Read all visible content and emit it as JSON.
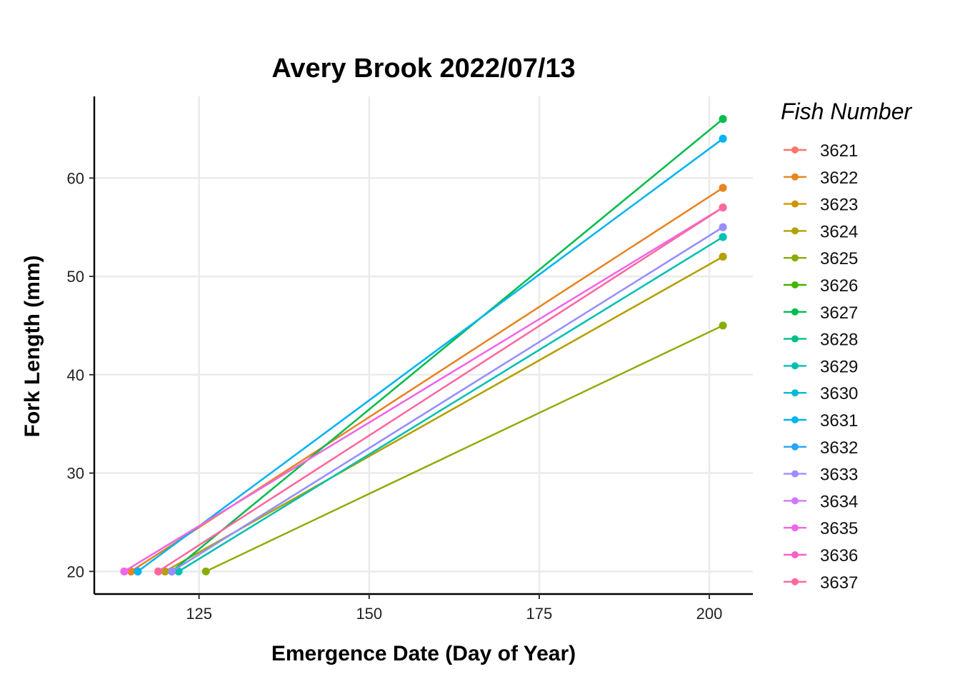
{
  "chart_data": {
    "type": "line",
    "title": "Avery Brook 2022/07/13",
    "xlabel": "Emergence Date (Day of Year)",
    "ylabel": "Fork Length (mm)",
    "xlim": [
      109.6,
      206.4
    ],
    "ylim": [
      17.7,
      68.3
    ],
    "xticks": [
      125,
      150,
      175,
      200
    ],
    "yticks": [
      20,
      30,
      40,
      50,
      60
    ],
    "grid": true,
    "legend": {
      "title": "Fish Number",
      "position": "right"
    },
    "series": [
      {
        "name": "3621",
        "color": "#F8766D",
        "points": [
          [
            115,
            20
          ],
          [
            202,
            59
          ]
        ]
      },
      {
        "name": "3622",
        "color": "#E7851E",
        "points": [
          [
            115,
            20
          ],
          [
            202,
            59
          ]
        ]
      },
      {
        "name": "3623",
        "color": "#D09400",
        "points": [
          [
            120,
            20
          ],
          [
            202,
            52
          ]
        ]
      },
      {
        "name": "3624",
        "color": "#B2A100",
        "points": [
          [
            120,
            20
          ],
          [
            202,
            52
          ]
        ]
      },
      {
        "name": "3625",
        "color": "#89AC00",
        "points": [
          [
            126,
            20
          ],
          [
            202,
            45
          ]
        ]
      },
      {
        "name": "3626",
        "color": "#45B500",
        "points": [
          [
            121,
            20
          ],
          [
            202,
            66
          ]
        ]
      },
      {
        "name": "3627",
        "color": "#00BC51",
        "points": [
          [
            121,
            20
          ],
          [
            202,
            66
          ]
        ]
      },
      {
        "name": "3628",
        "color": "#00C087",
        "points": [
          [
            122,
            20
          ],
          [
            202,
            54
          ]
        ]
      },
      {
        "name": "3629",
        "color": "#00C0B2",
        "points": [
          [
            122,
            20
          ],
          [
            202,
            54
          ]
        ]
      },
      {
        "name": "3630",
        "color": "#00BCD6",
        "points": [
          [
            116,
            20
          ],
          [
            202,
            64
          ]
        ]
      },
      {
        "name": "3631",
        "color": "#00B3F2",
        "points": [
          [
            116,
            20
          ],
          [
            202,
            64
          ]
        ]
      },
      {
        "name": "3632",
        "color": "#29A3FF",
        "points": [
          [
            121,
            20
          ],
          [
            202,
            55
          ]
        ]
      },
      {
        "name": "3633",
        "color": "#9C8DFF",
        "points": [
          [
            121,
            20
          ],
          [
            202,
            55
          ]
        ]
      },
      {
        "name": "3634",
        "color": "#D277FF",
        "points": [
          [
            114,
            20
          ],
          [
            202,
            57
          ]
        ]
      },
      {
        "name": "3635",
        "color": "#F166E8",
        "points": [
          [
            114,
            20
          ],
          [
            202,
            57
          ]
        ]
      },
      {
        "name": "3636",
        "color": "#FF61C7",
        "points": [
          [
            119,
            20
          ],
          [
            202,
            57
          ]
        ]
      },
      {
        "name": "3637",
        "color": "#FF689E",
        "points": [
          [
            119,
            20
          ],
          [
            202,
            57
          ]
        ]
      }
    ]
  }
}
